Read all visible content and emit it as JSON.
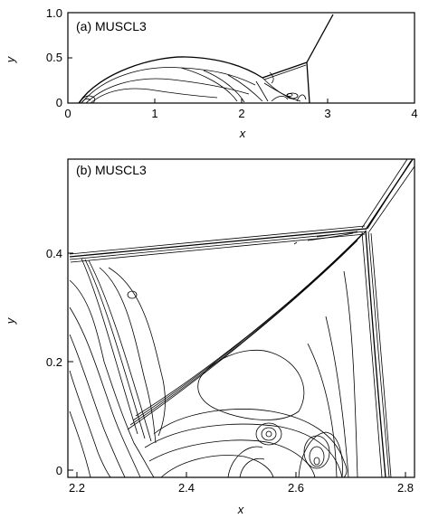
{
  "figure": {
    "panel_a": {
      "title": "(a) MUSCL3",
      "xlabel": "x",
      "ylabel": "y",
      "xticks": [
        "0",
        "1",
        "2",
        "3",
        "4"
      ],
      "yticks": [
        "0",
        "0.5",
        "1.0"
      ],
      "xlim": [
        0,
        4
      ],
      "ylim": [
        0,
        1
      ]
    },
    "panel_b": {
      "title": "(b) MUSCL3",
      "xlabel": "x",
      "ylabel": "y",
      "xticks": [
        "2.2",
        "2.4",
        "2.6",
        "2.8"
      ],
      "yticks": [
        "0",
        "0.2",
        "0.4"
      ],
      "xlim": [
        2.2,
        2.83
      ],
      "ylim": [
        0,
        0.57
      ]
    }
  }
}
